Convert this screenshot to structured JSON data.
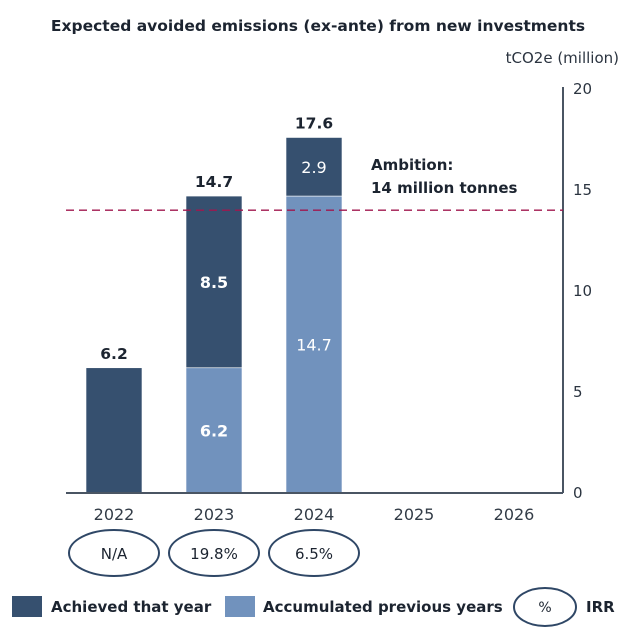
{
  "chart_data": {
    "type": "bar",
    "stacked": true,
    "title": "Expected avoided emissions (ex-ante) from new investments",
    "ylabel": "tCO2e (million)",
    "xlabel": "",
    "ylim": [
      0,
      20
    ],
    "yticks": [
      0,
      5,
      10,
      15,
      20
    ],
    "y_axis_side": "right",
    "categories": [
      "2022",
      "2023",
      "2024",
      "2025",
      "2026"
    ],
    "series": [
      {
        "name": "Accumulated previous years",
        "color": "#7192bd",
        "values": [
          0,
          6.2,
          14.7,
          null,
          null
        ],
        "labels": [
          "",
          "6.2",
          "14.7",
          "",
          ""
        ],
        "label_bold": [
          false,
          true,
          false,
          false,
          false
        ]
      },
      {
        "name": "Achieved that year",
        "color": "#36506f",
        "values": [
          6.2,
          8.5,
          2.9,
          null,
          null
        ],
        "labels": [
          "",
          "8.5",
          "2.9",
          "",
          ""
        ],
        "label_bold": [
          false,
          true,
          false,
          false,
          false
        ]
      }
    ],
    "totals": [
      "6.2",
      "14.7",
      "17.6",
      "",
      ""
    ],
    "reference_line": {
      "value": 14,
      "style": "dashed",
      "color": "#a0174f",
      "label_line1": "Ambition:",
      "label_line2": "14 million tonnes"
    },
    "irr": {
      "values": [
        "N/A",
        "19.8%",
        "6.5%",
        null,
        null
      ],
      "ellipse_color": "#2f4766"
    },
    "legend": {
      "position": "bottom",
      "items": [
        {
          "label": "Achieved that year",
          "color": "#36506f"
        },
        {
          "label": "Accumulated previous years",
          "color": "#7192bd"
        },
        {
          "label": "IRR",
          "symbol_text": "%",
          "symbol": "ellipse"
        }
      ]
    },
    "grid": false
  }
}
